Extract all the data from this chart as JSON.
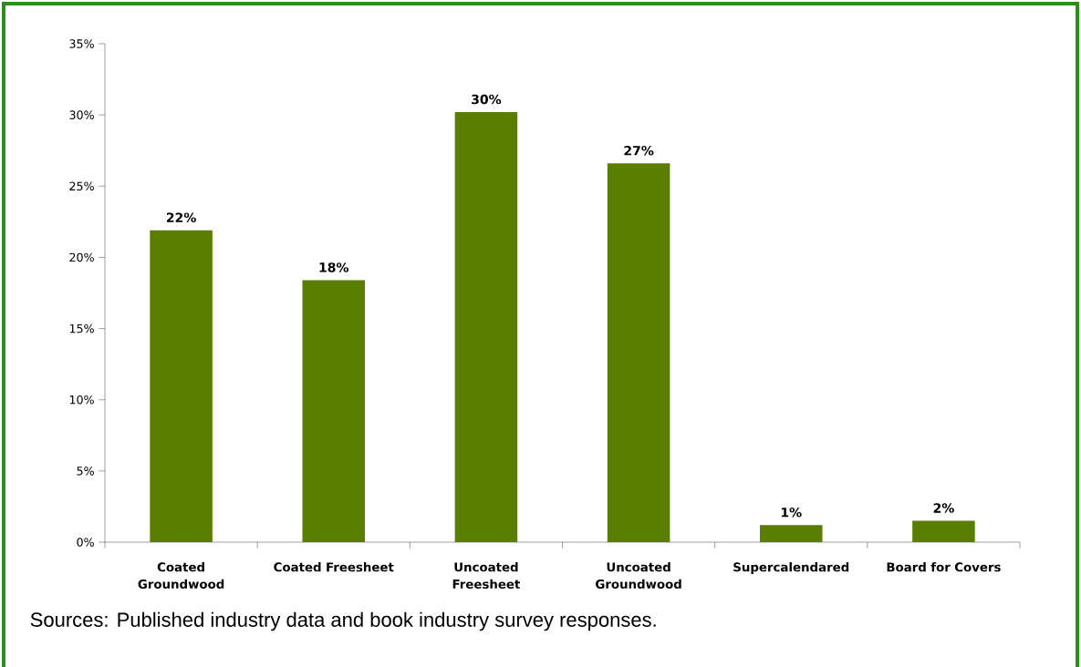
{
  "chart_data": {
    "type": "bar",
    "categories": [
      "Coated Groundwood",
      "Coated Freesheet",
      "Uncoated Freesheet",
      "Uncoated Groundwood",
      "Supercalendared",
      "Board for Covers"
    ],
    "values": [
      21.9,
      18.4,
      30.2,
      26.6,
      1.2,
      1.5
    ],
    "value_labels": [
      "22%",
      "18%",
      "30%",
      "27%",
      "1%",
      "2%"
    ],
    "color": "#5a7f00",
    "ylim": [
      0,
      35
    ],
    "yticks": [
      {
        "value": 0,
        "label": "0%"
      },
      {
        "value": 5,
        "label": "5%"
      },
      {
        "value": 10,
        "label": "10%"
      },
      {
        "value": 15,
        "label": "15%"
      },
      {
        "value": 20,
        "label": "20%"
      },
      {
        "value": 25,
        "label": "25%"
      },
      {
        "value": 30,
        "label": "30%"
      },
      {
        "value": 35,
        "label": "35%"
      }
    ],
    "grid": false,
    "annotations": [
      "Sources: Published industry data and book industry survey responses."
    ]
  }
}
